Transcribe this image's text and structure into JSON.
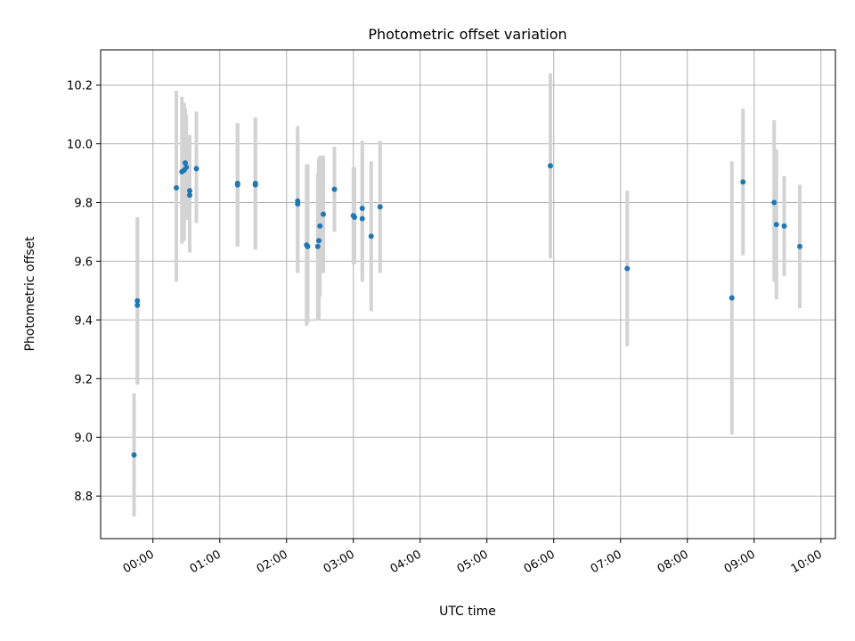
{
  "chart_data": {
    "type": "scatter",
    "title": "Photometric offset variation",
    "xlabel": "UTC time",
    "ylabel": "Photometric offset",
    "x_unit": "UTC time (HH:MM)",
    "xlim": [
      "23:13",
      "10:13"
    ],
    "ylim": [
      8.655,
      10.32
    ],
    "grid": true,
    "x_tick_labels": [
      "00:00",
      "01:00",
      "02:00",
      "03:00",
      "04:00",
      "05:00",
      "06:00",
      "07:00",
      "08:00",
      "09:00",
      "10:00"
    ],
    "y_ticks": [
      8.8,
      9.0,
      9.2,
      9.4,
      9.6,
      9.8,
      10.0,
      10.2
    ],
    "y_tick_labels": [
      "8.8",
      "9.0",
      "9.2",
      "9.4",
      "9.6",
      "9.8",
      "10.0",
      "10.2"
    ],
    "colors": {
      "point": "#1f77b4",
      "errorbar": "#d3d3d3",
      "grid": "#b0b0b0"
    },
    "points": [
      {
        "x": "23:43",
        "y": 8.94,
        "lo": 8.73,
        "hi": 9.15
      },
      {
        "x": "23:46",
        "y": 9.465,
        "lo": 9.18,
        "hi": 9.75
      },
      {
        "x": "23:46",
        "y": 9.45,
        "lo": 9.18,
        "hi": 9.75
      },
      {
        "x": "00:21",
        "y": 9.85,
        "lo": 9.53,
        "hi": 10.18
      },
      {
        "x": "00:26",
        "y": 9.905,
        "lo": 9.66,
        "hi": 10.16
      },
      {
        "x": "00:28",
        "y": 9.91,
        "lo": 9.67,
        "hi": 10.14
      },
      {
        "x": "00:29",
        "y": 9.935,
        "lo": 9.74,
        "hi": 10.12
      },
      {
        "x": "00:30",
        "y": 9.92,
        "lo": 9.74,
        "hi": 10.1
      },
      {
        "x": "00:33",
        "y": 9.84,
        "lo": 9.64,
        "hi": 10.03
      },
      {
        "x": "00:33",
        "y": 9.825,
        "lo": 9.63,
        "hi": 10.02
      },
      {
        "x": "00:39",
        "y": 9.915,
        "lo": 9.73,
        "hi": 10.11
      },
      {
        "x": "01:16",
        "y": 9.865,
        "lo": 9.65,
        "hi": 10.07
      },
      {
        "x": "01:16",
        "y": 9.86,
        "lo": 9.65,
        "hi": 10.07
      },
      {
        "x": "01:32",
        "y": 9.865,
        "lo": 9.64,
        "hi": 10.09
      },
      {
        "x": "01:32",
        "y": 9.86,
        "lo": 9.64,
        "hi": 10.09
      },
      {
        "x": "02:10",
        "y": 9.805,
        "lo": 9.56,
        "hi": 10.06
      },
      {
        "x": "02:10",
        "y": 9.795,
        "lo": 9.56,
        "hi": 10.03
      },
      {
        "x": "02:18",
        "y": 9.655,
        "lo": 9.38,
        "hi": 9.93
      },
      {
        "x": "02:19",
        "y": 9.65,
        "lo": 9.39,
        "hi": 9.93
      },
      {
        "x": "02:28",
        "y": 9.65,
        "lo": 9.4,
        "hi": 9.9
      },
      {
        "x": "02:29",
        "y": 9.67,
        "lo": 9.4,
        "hi": 9.95
      },
      {
        "x": "02:30",
        "y": 9.72,
        "lo": 9.48,
        "hi": 9.96
      },
      {
        "x": "02:33",
        "y": 9.76,
        "lo": 9.56,
        "hi": 9.96
      },
      {
        "x": "02:43",
        "y": 9.845,
        "lo": 9.7,
        "hi": 9.99
      },
      {
        "x": "03:00",
        "y": 9.755,
        "lo": 9.59,
        "hi": 9.92
      },
      {
        "x": "03:01",
        "y": 9.75,
        "lo": 9.59,
        "hi": 9.92
      },
      {
        "x": "03:08",
        "y": 9.78,
        "lo": 9.56,
        "hi": 10.01
      },
      {
        "x": "03:08",
        "y": 9.745,
        "lo": 9.53,
        "hi": 9.97
      },
      {
        "x": "03:16",
        "y": 9.685,
        "lo": 9.43,
        "hi": 9.94
      },
      {
        "x": "03:24",
        "y": 9.785,
        "lo": 9.56,
        "hi": 10.01
      },
      {
        "x": "05:57",
        "y": 9.925,
        "lo": 9.61,
        "hi": 10.24
      },
      {
        "x": "07:06",
        "y": 9.575,
        "lo": 9.31,
        "hi": 9.84
      },
      {
        "x": "08:40",
        "y": 9.475,
        "lo": 9.01,
        "hi": 9.94
      },
      {
        "x": "08:50",
        "y": 9.87,
        "lo": 9.62,
        "hi": 10.12
      },
      {
        "x": "09:18",
        "y": 9.8,
        "lo": 9.53,
        "hi": 10.08
      },
      {
        "x": "09:20",
        "y": 9.725,
        "lo": 9.47,
        "hi": 9.98
      },
      {
        "x": "09:27",
        "y": 9.72,
        "lo": 9.55,
        "hi": 9.89
      },
      {
        "x": "09:41",
        "y": 9.65,
        "lo": 9.44,
        "hi": 9.86
      }
    ]
  }
}
